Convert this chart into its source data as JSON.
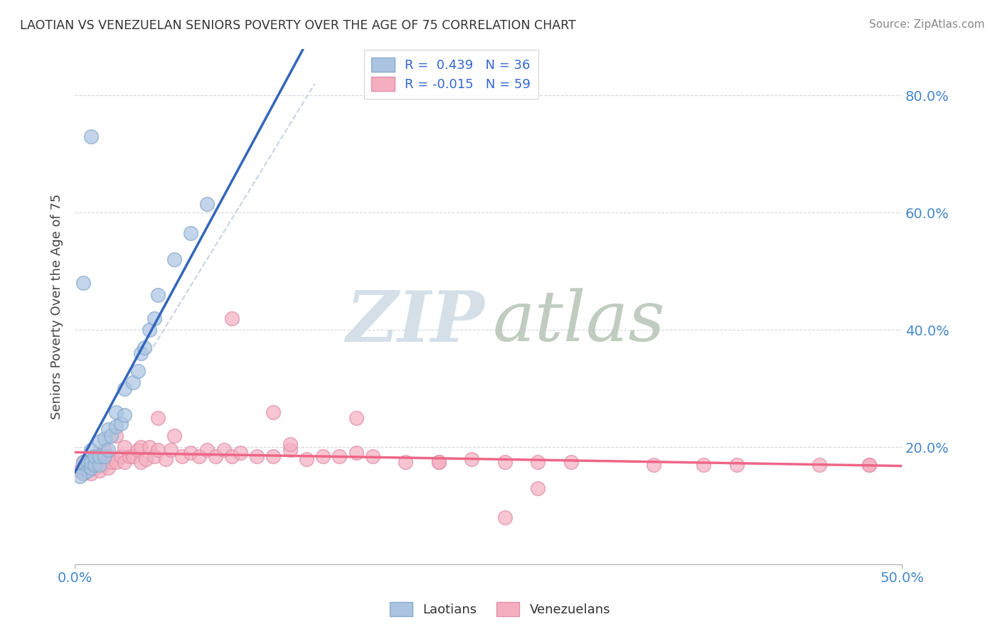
{
  "title": "LAOTIAN VS VENEZUELAN SENIORS POVERTY OVER THE AGE OF 75 CORRELATION CHART",
  "source_text": "Source: ZipAtlas.com",
  "ylabel": "Seniors Poverty Over the Age of 75",
  "xlim": [
    0.0,
    0.5
  ],
  "ylim": [
    0.0,
    0.88
  ],
  "ytick_values": [
    0.2,
    0.4,
    0.6,
    0.8
  ],
  "ytick_labels": [
    "20.0%",
    "40.0%",
    "60.0%",
    "80.0%"
  ],
  "xtick_values": [
    0.0,
    0.5
  ],
  "xtick_labels": [
    "0.0%",
    "50.0%"
  ],
  "laotian_R": 0.439,
  "laotian_N": 36,
  "venezuelan_R": -0.015,
  "venezuelan_N": 59,
  "laotian_color_fill": "#aac4e2",
  "laotian_color_edge": "#88aacc",
  "venezuelan_color_fill": "#f5aec0",
  "venezuelan_color_edge": "#e090a8",
  "laotian_line_color": "#3366bb",
  "venezuelan_line_color": "#ee6688",
  "diagonal_line_color": "#c8d4e0",
  "background_color": "#ffffff",
  "grid_color": "#d0d8e0",
  "watermark_zip_color": "#d4dfe8",
  "watermark_atlas_color": "#c0ccc0",
  "laotian_x": [
    0.005,
    0.005,
    0.005,
    0.008,
    0.008,
    0.01,
    0.01,
    0.01,
    0.012,
    0.012,
    0.015,
    0.015,
    0.015,
    0.018,
    0.018,
    0.02,
    0.02,
    0.022,
    0.025,
    0.025,
    0.028,
    0.03,
    0.03,
    0.035,
    0.038,
    0.04,
    0.042,
    0.045,
    0.048,
    0.05,
    0.06,
    0.07,
    0.08,
    0.01,
    0.005,
    0.003
  ],
  "laotian_y": [
    0.155,
    0.165,
    0.175,
    0.16,
    0.175,
    0.165,
    0.175,
    0.195,
    0.17,
    0.185,
    0.17,
    0.185,
    0.21,
    0.185,
    0.215,
    0.195,
    0.23,
    0.22,
    0.235,
    0.26,
    0.24,
    0.255,
    0.3,
    0.31,
    0.33,
    0.36,
    0.37,
    0.4,
    0.42,
    0.46,
    0.52,
    0.565,
    0.615,
    0.73,
    0.48,
    0.15
  ],
  "venezuelan_x": [
    0.003,
    0.005,
    0.005,
    0.007,
    0.008,
    0.01,
    0.01,
    0.012,
    0.013,
    0.015,
    0.015,
    0.017,
    0.018,
    0.02,
    0.02,
    0.022,
    0.025,
    0.025,
    0.028,
    0.03,
    0.03,
    0.033,
    0.035,
    0.038,
    0.04,
    0.04,
    0.043,
    0.045,
    0.048,
    0.05,
    0.055,
    0.058,
    0.06,
    0.065,
    0.07,
    0.075,
    0.08,
    0.085,
    0.09,
    0.095,
    0.1,
    0.11,
    0.12,
    0.13,
    0.14,
    0.15,
    0.16,
    0.17,
    0.18,
    0.2,
    0.22,
    0.24,
    0.26,
    0.28,
    0.3,
    0.35,
    0.4,
    0.45,
    0.48
  ],
  "venezuelan_y": [
    0.16,
    0.155,
    0.175,
    0.16,
    0.17,
    0.155,
    0.175,
    0.165,
    0.185,
    0.16,
    0.18,
    0.17,
    0.195,
    0.165,
    0.185,
    0.175,
    0.175,
    0.22,
    0.185,
    0.175,
    0.2,
    0.185,
    0.185,
    0.195,
    0.175,
    0.2,
    0.18,
    0.2,
    0.185,
    0.195,
    0.18,
    0.195,
    0.22,
    0.185,
    0.19,
    0.185,
    0.195,
    0.185,
    0.195,
    0.185,
    0.19,
    0.185,
    0.185,
    0.195,
    0.18,
    0.185,
    0.185,
    0.19,
    0.185,
    0.175,
    0.175,
    0.18,
    0.175,
    0.175,
    0.175,
    0.17,
    0.17,
    0.17,
    0.17
  ],
  "ven_outliers_x": [
    0.05,
    0.095,
    0.12,
    0.13,
    0.17,
    0.22,
    0.28,
    0.38,
    0.48,
    0.26
  ],
  "ven_outliers_y": [
    0.25,
    0.42,
    0.26,
    0.205,
    0.25,
    0.175,
    0.13,
    0.17,
    0.17,
    0.08
  ]
}
